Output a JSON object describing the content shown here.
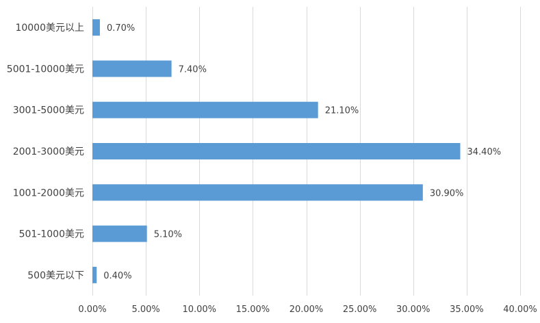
{
  "chart_data": {
    "type": "bar",
    "orientation": "horizontal",
    "categories": [
      "10000美元以上",
      "5001-10000美元",
      "3001-5000美元",
      "2001-3000美元",
      "1001-2000美元",
      "501-1000美元",
      "500美元以下"
    ],
    "values": [
      0.7,
      7.4,
      21.1,
      34.4,
      30.9,
      5.1,
      0.4
    ],
    "data_labels": [
      "0.70%",
      "7.40%",
      "21.10%",
      "34.40%",
      "30.90%",
      "5.10%",
      "0.40%"
    ],
    "xlim": [
      0,
      40
    ],
    "x_ticks": [
      0,
      5,
      10,
      15,
      20,
      25,
      30,
      35,
      40
    ],
    "x_tick_labels": [
      "0.00%",
      "5.00%",
      "10.00%",
      "15.00%",
      "20.00%",
      "25.00%",
      "30.00%",
      "35.00%",
      "40.00%"
    ],
    "bar_color": "#5b9bd5",
    "grid": true,
    "title": "",
    "xlabel": "",
    "ylabel": ""
  }
}
